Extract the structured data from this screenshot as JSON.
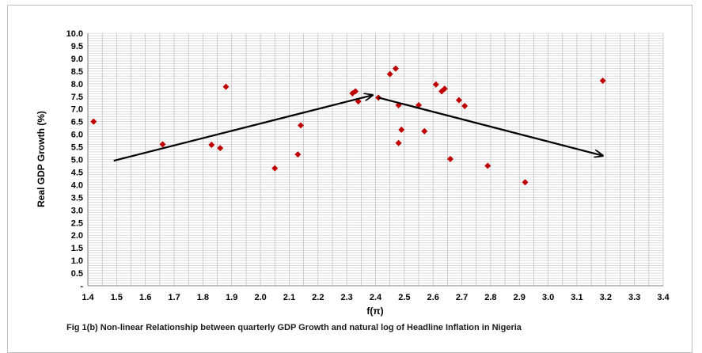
{
  "chart_data": {
    "type": "scatter",
    "xlabel": "f(π)",
    "ylabel": "Real GDP Growth (%)",
    "xlim": [
      1.4,
      3.4
    ],
    "ylim": [
      0,
      10
    ],
    "x_ticks": [
      "1.4",
      "1.5",
      "1.6",
      "1.7",
      "1.8",
      "1.9",
      "2.0",
      "2.1",
      "2.2",
      "2.3",
      "2.4",
      "2.5",
      "2.6",
      "2.7",
      "2.8",
      "2.9",
      "3.0",
      "3.1",
      "3.2",
      "3.3",
      "3.4"
    ],
    "y_ticks": [
      "-",
      "0.5",
      "1.0",
      "1.5",
      "2.0",
      "2.5",
      "3.0",
      "3.5",
      "4.0",
      "4.5",
      "5.0",
      "5.5",
      "6.0",
      "6.5",
      "7.0",
      "7.5",
      "8.0",
      "8.5",
      "9.0",
      "9.5",
      "10.0"
    ],
    "grid": true,
    "marker_color": "#c00000",
    "points": [
      {
        "x": 1.42,
        "y": 6.5
      },
      {
        "x": 1.66,
        "y": 5.6
      },
      {
        "x": 1.83,
        "y": 5.58
      },
      {
        "x": 1.86,
        "y": 5.45
      },
      {
        "x": 1.88,
        "y": 7.88
      },
      {
        "x": 2.05,
        "y": 4.65
      },
      {
        "x": 2.13,
        "y": 5.2
      },
      {
        "x": 2.14,
        "y": 6.35
      },
      {
        "x": 2.32,
        "y": 7.62
      },
      {
        "x": 2.33,
        "y": 7.7
      },
      {
        "x": 2.34,
        "y": 7.3
      },
      {
        "x": 2.41,
        "y": 7.45
      },
      {
        "x": 2.45,
        "y": 8.38
      },
      {
        "x": 2.47,
        "y": 8.6
      },
      {
        "x": 2.48,
        "y": 7.15
      },
      {
        "x": 2.48,
        "y": 5.65
      },
      {
        "x": 2.49,
        "y": 6.18
      },
      {
        "x": 2.55,
        "y": 7.15
      },
      {
        "x": 2.57,
        "y": 6.12
      },
      {
        "x": 2.61,
        "y": 7.97
      },
      {
        "x": 2.63,
        "y": 7.7
      },
      {
        "x": 2.64,
        "y": 7.8
      },
      {
        "x": 2.66,
        "y": 5.02
      },
      {
        "x": 2.69,
        "y": 7.35
      },
      {
        "x": 2.71,
        "y": 7.12
      },
      {
        "x": 2.79,
        "y": 4.75
      },
      {
        "x": 2.92,
        "y": 4.1
      },
      {
        "x": 3.19,
        "y": 8.12
      }
    ],
    "annotations": [
      {
        "type": "arrow",
        "from": [
          1.49,
          4.95
        ],
        "to": [
          2.39,
          7.55
        ]
      },
      {
        "type": "arrow",
        "from": [
          2.41,
          7.45
        ],
        "to": [
          3.19,
          5.15
        ]
      }
    ]
  },
  "caption": "Fig 1(b) Non-linear Relationship between quarterly GDP Growth and  natural log of Headline Inflation in Nigeria"
}
